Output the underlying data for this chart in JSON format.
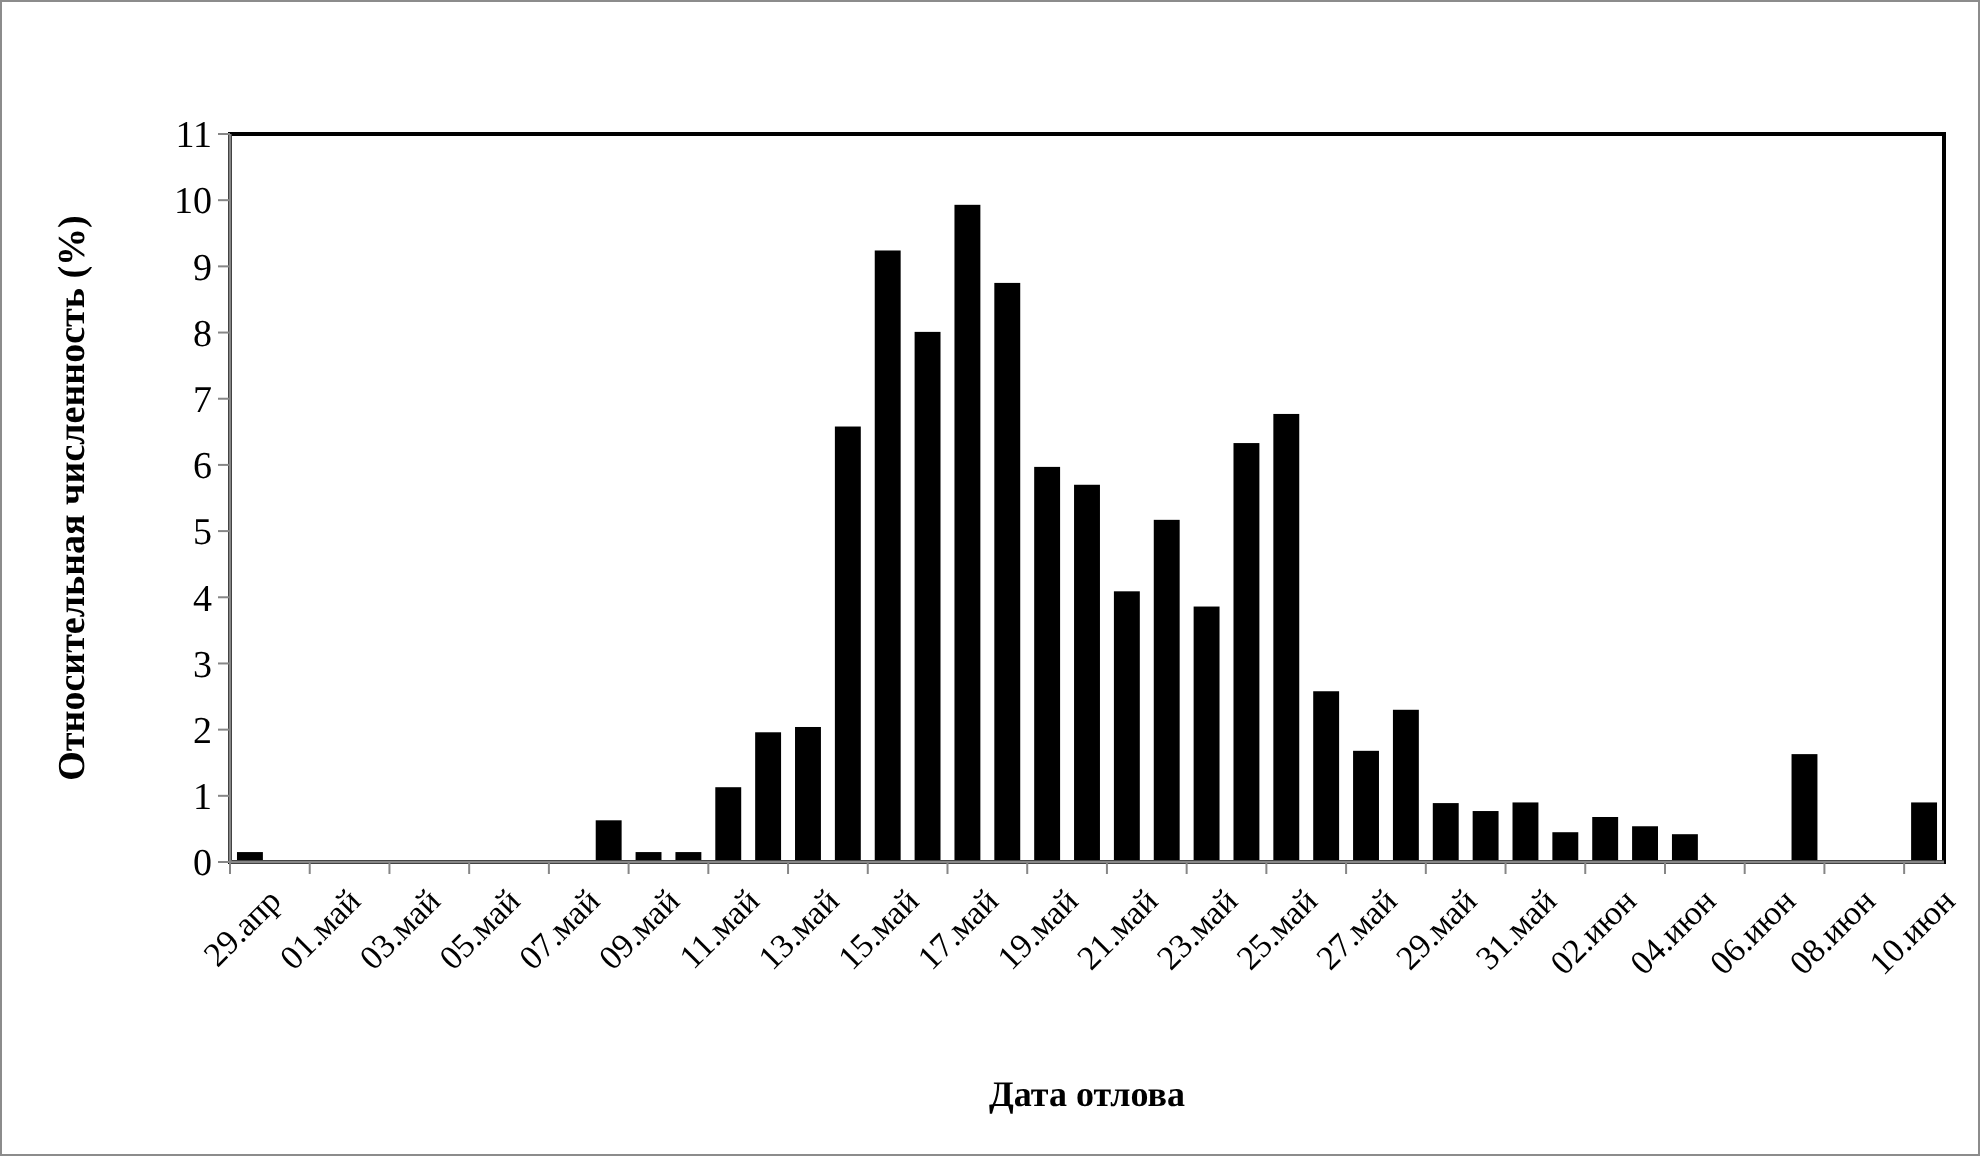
{
  "chart_data": {
    "type": "bar",
    "xlabel": "Дата отлова",
    "ylabel": "Относительная численность (%)",
    "categories": [
      "29.апр",
      null,
      "01.май",
      null,
      "03.май",
      null,
      "05.май",
      null,
      "07.май",
      null,
      "09.май",
      null,
      "11.май",
      null,
      "13.май",
      null,
      "15.май",
      null,
      "17.май",
      null,
      "19.май",
      null,
      "21.май",
      null,
      "23.май",
      null,
      "25.май",
      null,
      "27.май",
      null,
      "29.май",
      null,
      "31.май",
      null,
      "02.июн",
      null,
      "04.июн",
      null,
      "06.июн",
      null,
      "08.июн",
      null,
      "10.июн"
    ],
    "values": [
      0.15,
      0,
      0,
      0,
      0,
      0,
      0,
      0,
      0,
      0.63,
      0.15,
      0.15,
      1.13,
      1.96,
      2.04,
      6.58,
      9.24,
      8.01,
      9.93,
      8.75,
      5.97,
      5.7,
      4.09,
      5.17,
      3.86,
      6.33,
      6.77,
      2.58,
      1.68,
      2.3,
      0.89,
      0.77,
      0.9,
      0.45,
      0.68,
      0.54,
      0.42,
      0,
      0,
      1.63,
      0,
      0,
      0.9
    ],
    "color": "#000000",
    "ylim": [
      0,
      11
    ],
    "yticks": [
      0,
      1,
      2,
      3,
      4,
      5,
      6,
      7,
      8,
      9,
      10,
      11
    ],
    "grid": false
  }
}
